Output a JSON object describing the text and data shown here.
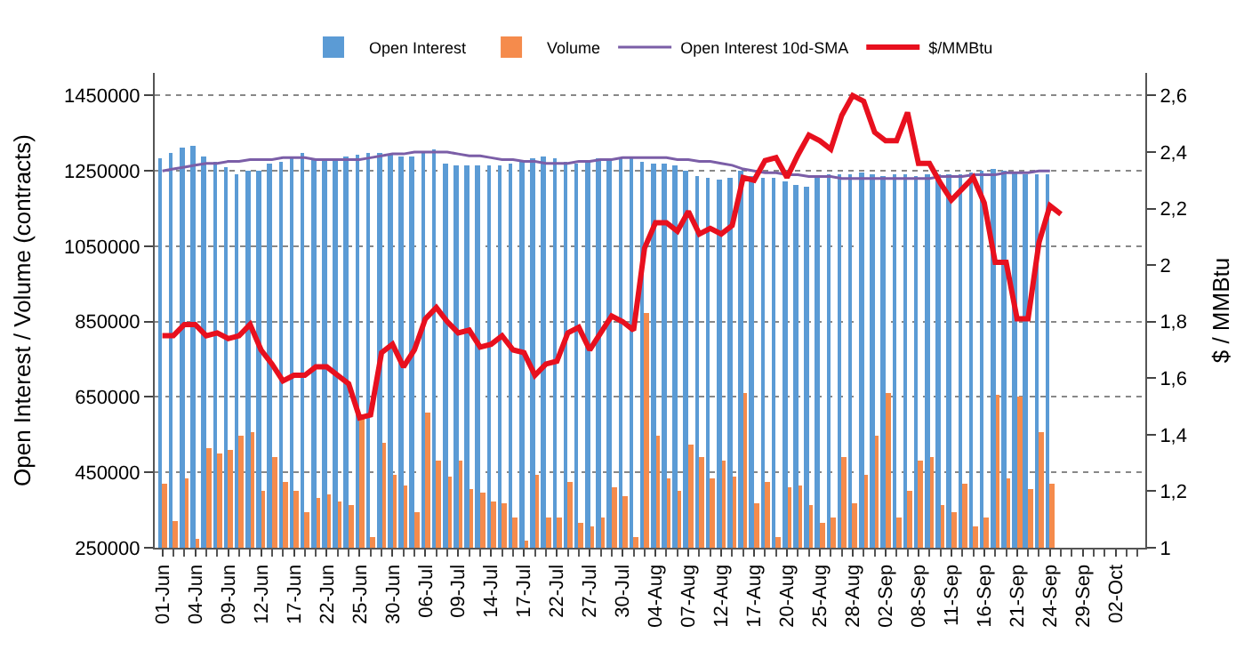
{
  "chart_data": {
    "type": "bar",
    "ylabel": "Open Interest / Volume (contracts)",
    "y2label": "$ / MMBtu",
    "categories": [
      "01-Jun",
      null,
      null,
      "04-Jun",
      null,
      null,
      "09-Jun",
      null,
      null,
      "12-Jun",
      null,
      null,
      "17-Jun",
      null,
      null,
      "22-Jun",
      null,
      null,
      "25-Jun",
      null,
      null,
      "30-Jun",
      null,
      null,
      "06-Jul",
      null,
      null,
      "09-Jul",
      null,
      null,
      "14-Jul",
      null,
      null,
      "17-Jul",
      null,
      null,
      "22-Jul",
      null,
      null,
      "27-Jul",
      null,
      null,
      "30-Jul",
      null,
      null,
      "04-Aug",
      null,
      null,
      "07-Aug",
      null,
      null,
      "12-Aug",
      null,
      null,
      "17-Aug",
      null,
      null,
      "20-Aug",
      null,
      null,
      "25-Aug",
      null,
      null,
      "28-Aug",
      null,
      null,
      "02-Sep",
      null,
      null,
      "08-Sep",
      null,
      null,
      "11-Sep",
      null,
      null,
      "16-Sep",
      null,
      null,
      "21-Sep",
      null,
      null,
      "24-Sep",
      null,
      null,
      "29-Sep",
      null,
      null,
      "02-Oct",
      null,
      null
    ],
    "series": [
      {
        "name": "Open Interest",
        "color": "#5b9bd5",
        "values": [
          1285000,
          1300000,
          1310000,
          1315000,
          1290000,
          1275000,
          1260000,
          1240000,
          1250000,
          1250000,
          1270000,
          1275000,
          1285000,
          1300000,
          1285000,
          1280000,
          1280000,
          1290000,
          1295000,
          1300000,
          1300000,
          1295000,
          1290000,
          1290000,
          1300000,
          1305000,
          1270000,
          1265000,
          1265000,
          1265000,
          1265000,
          1265000,
          1270000,
          1280000,
          1285000,
          1290000,
          1285000,
          1275000,
          1270000,
          1280000,
          1285000,
          1285000,
          1285000,
          1285000,
          1275000,
          1270000,
          1270000,
          1265000,
          1250000,
          1235000,
          1230000,
          1225000,
          1230000,
          1250000,
          1235000,
          1230000,
          1230000,
          1220000,
          1215000,
          1210000,
          1230000,
          1240000,
          1240000,
          1240000,
          1245000,
          1240000,
          1235000,
          1240000,
          1240000,
          1235000,
          1240000,
          1240000,
          1240000,
          1240000,
          1245000,
          1250000,
          1255000,
          1250000,
          1245000,
          1240000,
          1240000,
          1240000,
          null,
          null,
          null,
          null,
          null,
          null,
          null,
          null
        ]
      },
      {
        "name": "Volume",
        "color": "#f58b4c",
        "values": [
          420000,
          320000,
          435000,
          275000,
          515000,
          500000,
          510000,
          545000,
          555000,
          400000,
          490000,
          425000,
          400000,
          345000,
          380000,
          390000,
          375000,
          365000,
          595000,
          280000,
          530000,
          445000,
          415000,
          345000,
          610000,
          480000,
          440000,
          480000,
          405000,
          395000,
          375000,
          370000,
          330000,
          270000,
          445000,
          330000,
          330000,
          425000,
          315000,
          305000,
          330000,
          410000,
          385000,
          280000,
          875000,
          545000,
          435000,
          400000,
          525000,
          490000,
          435000,
          480000,
          440000,
          660000,
          370000,
          425000,
          280000,
          410000,
          415000,
          365000,
          315000,
          330000,
          490000,
          370000,
          445000,
          545000,
          660000,
          330000,
          400000,
          480000,
          490000,
          365000,
          345000,
          420000,
          305000,
          330000,
          655000,
          435000,
          650000,
          405000,
          555000,
          420000,
          null,
          null,
          null,
          null,
          null,
          null,
          null,
          null
        ]
      },
      {
        "name": "Open Interest 10d-SMA",
        "type": "line",
        "color": "#7b5ea7",
        "values": [
          1250000,
          1255000,
          1260000,
          1265000,
          1270000,
          1270000,
          1275000,
          1275000,
          1280000,
          1280000,
          1280000,
          1285000,
          1285000,
          1285000,
          1280000,
          1280000,
          1280000,
          1280000,
          1280000,
          1285000,
          1290000,
          1295000,
          1295000,
          1300000,
          1300000,
          1300000,
          1300000,
          1295000,
          1290000,
          1290000,
          1285000,
          1280000,
          1280000,
          1275000,
          1275000,
          1270000,
          1270000,
          1270000,
          1275000,
          1275000,
          1280000,
          1280000,
          1285000,
          1285000,
          1285000,
          1285000,
          1285000,
          1280000,
          1280000,
          1275000,
          1275000,
          1270000,
          1265000,
          1255000,
          1250000,
          1245000,
          1245000,
          1240000,
          1240000,
          1235000,
          1235000,
          1235000,
          1230000,
          1230000,
          1230000,
          1230000,
          1230000,
          1230000,
          1230000,
          1230000,
          1230000,
          1235000,
          1235000,
          1235000,
          1240000,
          1240000,
          1240000,
          1245000,
          1245000,
          1245000,
          1250000,
          1250000,
          null,
          null,
          null,
          null,
          null,
          null,
          null,
          null
        ]
      },
      {
        "name": "$/MMBtu",
        "type": "line",
        "axis": "y2",
        "color": "#e8101e",
        "values": [
          1.75,
          1.75,
          1.79,
          1.79,
          1.75,
          1.76,
          1.74,
          1.75,
          1.79,
          1.7,
          1.65,
          1.59,
          1.61,
          1.61,
          1.64,
          1.64,
          1.61,
          1.58,
          1.46,
          1.47,
          1.69,
          1.72,
          1.64,
          1.7,
          1.81,
          1.85,
          1.8,
          1.76,
          1.77,
          1.71,
          1.72,
          1.75,
          1.7,
          1.69,
          1.61,
          1.65,
          1.66,
          1.76,
          1.78,
          1.7,
          1.76,
          1.82,
          1.8,
          1.77,
          2.06,
          2.15,
          2.15,
          2.12,
          2.19,
          2.11,
          2.13,
          2.11,
          2.14,
          2.31,
          2.3,
          2.37,
          2.38,
          2.31,
          2.39,
          2.46,
          2.44,
          2.41,
          2.53,
          2.6,
          2.58,
          2.47,
          2.44,
          2.44,
          2.54,
          2.36,
          2.36,
          2.29,
          2.23,
          2.27,
          2.31,
          2.22,
          2.01,
          2.01,
          1.81,
          1.81,
          2.08,
          2.21,
          2.18,
          null,
          null,
          null,
          null,
          null,
          null,
          null
        ]
      }
    ],
    "ylim": [
      250000,
      1510000
    ],
    "yticks": [
      250000,
      450000,
      650000,
      850000,
      1050000,
      1250000,
      1450000
    ],
    "y2lim": [
      1,
      2.68
    ],
    "y2ticks": [
      {
        "value": 1,
        "label": "1"
      },
      {
        "value": 1.2,
        "label": "1,2"
      },
      {
        "value": 1.4,
        "label": "1,4"
      },
      {
        "value": 1.6,
        "label": "1,6"
      },
      {
        "value": 1.8,
        "label": "1,8"
      },
      {
        "value": 2,
        "label": "2"
      },
      {
        "value": 2.2,
        "label": "2,2"
      },
      {
        "value": 2.4,
        "label": "2,4"
      },
      {
        "value": 2.6,
        "label": "2,6"
      }
    ],
    "grid": "y",
    "legend": "top",
    "marker": "none",
    "line_style": "solid"
  }
}
